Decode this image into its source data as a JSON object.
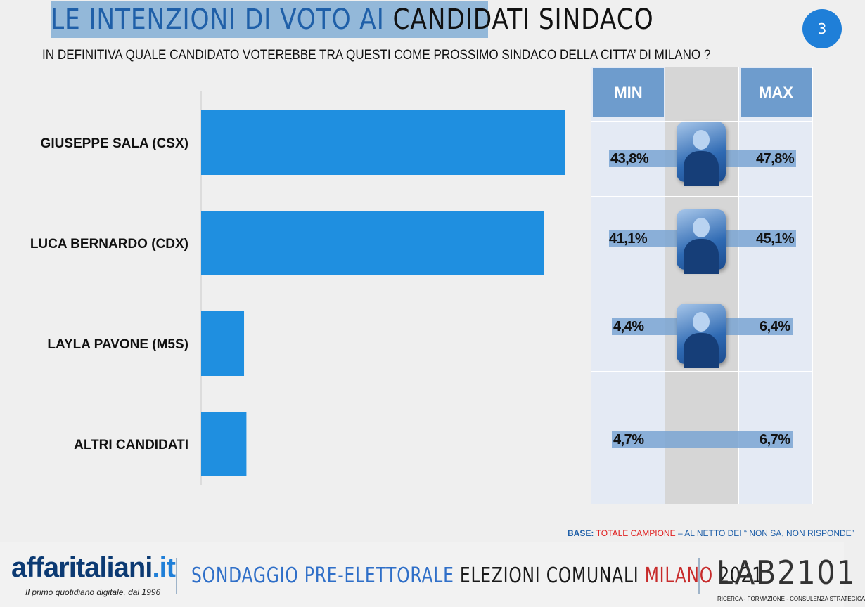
{
  "title_part1": "LE INTENZIONI DI VOTO AI ",
  "title_part2": "CANDIDATI SINDACO",
  "page_number": "3",
  "subtitle": "IN DEFINITIVA QUALE CANDIDATO VOTEREBBE TRA QUESTI COME PROSSIMO SINDACO DELLA CITTA’ DI MILANO ?",
  "table": {
    "min_label": "MIN",
    "max_label": "MAX",
    "rows": [
      {
        "min": "43,8%",
        "max": "47,8%",
        "photo": "candidate-photo-sala"
      },
      {
        "min": "41,1%",
        "max": "45,1%",
        "photo": "candidate-photo-bernardo"
      },
      {
        "min": "4,4%",
        "max": "6,4%",
        "photo": "candidate-photo-pavone"
      },
      {
        "min": "4,7%",
        "max": "6,7%",
        "photo": ""
      }
    ]
  },
  "base_note": {
    "label": "BASE:",
    "red": "TOTALE CAMPIONE",
    "rest": " – AL NETTO DEI “ NON SA, NON RISPONDE”"
  },
  "footer": {
    "logo": "affaritaliani",
    "logo_suffix": ".it",
    "tagline": "Il primo quotidiano digitale, dal 1996",
    "title_part1": "SONDAGGIO PRE-ELETTORALE ",
    "title_part2": "ELEZIONI COMUNALI ",
    "title_part3": "MILANO ",
    "title_part4": "2021",
    "lab_logo": "LAB2101",
    "lab_tagline": "RICERCA - FORMAZIONE - CONSULENZA STRATEGICA"
  },
  "colors": {
    "bar": "#1f8fe0",
    "accent": "#1f5fa8",
    "red": "#e02020"
  },
  "chart_data": {
    "type": "bar",
    "orientation": "horizontal",
    "categories": [
      "GIUSEPPE SALA (CSX)",
      "LUCA BERNARDO (CDX)",
      "LAYLA PAVONE (M5S)",
      "ALTRI CANDIDATI"
    ],
    "values": [
      45.8,
      43.1,
      5.4,
      5.7
    ],
    "xlim": [
      0,
      50
    ],
    "grid": false,
    "legend": "none"
  }
}
